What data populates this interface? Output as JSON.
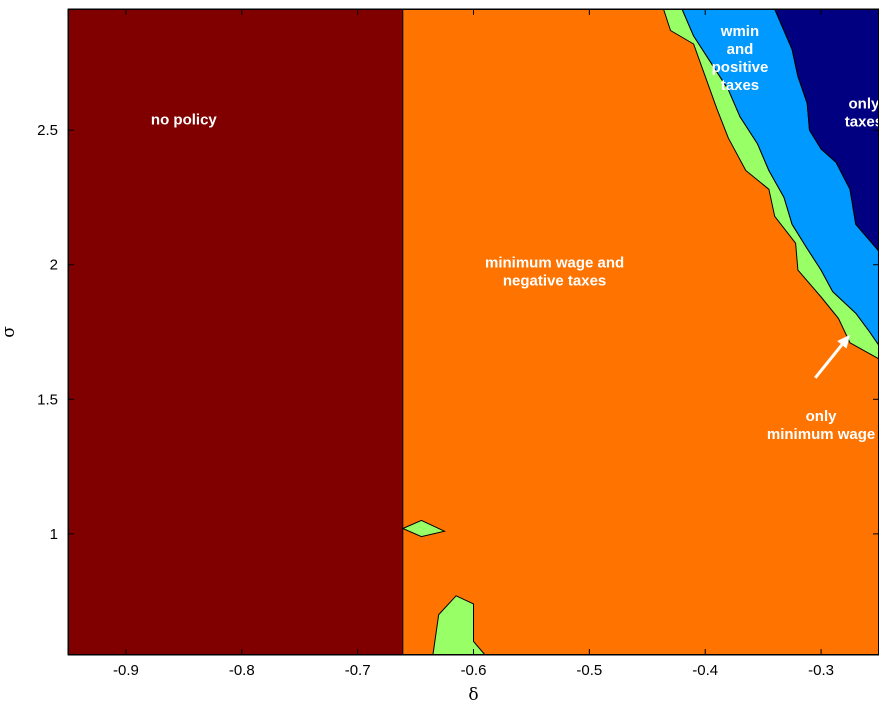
{
  "chart_data": {
    "type": "contour",
    "title": "",
    "xlabel": "δ",
    "ylabel": "σ",
    "xlim": [
      -0.95,
      -0.25
    ],
    "ylim": [
      0.55,
      2.95
    ],
    "xticks": [
      -0.9,
      -0.8,
      -0.7,
      -0.6,
      -0.5,
      -0.4,
      -0.3
    ],
    "xtick_labels": [
      "-0.9",
      "-0.8",
      "-0.7",
      "-0.6",
      "-0.5",
      "-0.4",
      "-0.3"
    ],
    "yticks": [
      1,
      1.5,
      2,
      2.5
    ],
    "ytick_labels": [
      "1",
      "1.5",
      "2",
      "2.5"
    ],
    "grid": false,
    "regions": [
      {
        "key": "no-policy",
        "label_lines": [
          "no policy"
        ],
        "color": "#800000",
        "label_at": [
          -0.85,
          2.52
        ],
        "polygon": [
          [
            -0.95,
            0.55
          ],
          [
            -0.95,
            2.95
          ],
          [
            -0.661,
            2.95
          ],
          [
            -0.661,
            1.07
          ],
          [
            -0.645,
            1.0
          ],
          [
            -0.64,
            0.55
          ]
        ]
      },
      {
        "key": "minimum-wage-and-negative-taxes",
        "label_lines": [
          "minimum wage and",
          "negative taxes"
        ],
        "color": "#ff7300",
        "label_at": [
          -0.53,
          1.99
        ],
        "polygon": [
          [
            -0.661,
            2.95
          ],
          [
            -0.25,
            2.95
          ],
          [
            -0.25,
            0.55
          ],
          [
            -0.661,
            0.55
          ],
          [
            -0.661,
            1.07
          ]
        ]
      },
      {
        "key": "only-minimum-wage",
        "label_lines": [
          "only",
          "minimum wage"
        ],
        "color": "#99ff66",
        "label_at": [
          -0.3,
          1.42
        ],
        "polygon": [
          [
            -0.436,
            2.95
          ],
          [
            -0.43,
            2.87
          ],
          [
            -0.41,
            2.82
          ],
          [
            -0.4,
            2.7
          ],
          [
            -0.39,
            2.58
          ],
          [
            -0.38,
            2.47
          ],
          [
            -0.365,
            2.35
          ],
          [
            -0.345,
            2.28
          ],
          [
            -0.34,
            2.18
          ],
          [
            -0.322,
            2.08
          ],
          [
            -0.32,
            1.98
          ],
          [
            -0.3,
            1.88
          ],
          [
            -0.285,
            1.8
          ],
          [
            -0.275,
            1.71
          ],
          [
            -0.25,
            1.65
          ],
          [
            -0.25,
            1.7
          ],
          [
            -0.258,
            1.75
          ],
          [
            -0.27,
            1.82
          ],
          [
            -0.29,
            1.9
          ],
          [
            -0.3,
            1.98
          ],
          [
            -0.312,
            2.06
          ],
          [
            -0.325,
            2.15
          ],
          [
            -0.332,
            2.25
          ],
          [
            -0.345,
            2.35
          ],
          [
            -0.355,
            2.45
          ],
          [
            -0.37,
            2.55
          ],
          [
            -0.38,
            2.65
          ],
          [
            -0.395,
            2.75
          ],
          [
            -0.41,
            2.85
          ],
          [
            -0.42,
            2.95
          ]
        ]
      },
      {
        "key": "wmin-and-positive-taxes",
        "label_lines": [
          "wmin",
          "and",
          "positive",
          "taxes"
        ],
        "color": "#0099ff",
        "label_at": [
          -0.37,
          2.85
        ],
        "polygon": [
          [
            -0.42,
            2.95
          ],
          [
            -0.41,
            2.85
          ],
          [
            -0.395,
            2.75
          ],
          [
            -0.38,
            2.65
          ],
          [
            -0.37,
            2.55
          ],
          [
            -0.355,
            2.45
          ],
          [
            -0.345,
            2.35
          ],
          [
            -0.332,
            2.25
          ],
          [
            -0.325,
            2.15
          ],
          [
            -0.312,
            2.06
          ],
          [
            -0.3,
            1.98
          ],
          [
            -0.29,
            1.9
          ],
          [
            -0.27,
            1.82
          ],
          [
            -0.258,
            1.75
          ],
          [
            -0.25,
            1.7
          ],
          [
            -0.25,
            2.05
          ],
          [
            -0.26,
            2.1
          ],
          [
            -0.27,
            2.15
          ],
          [
            -0.275,
            2.28
          ],
          [
            -0.287,
            2.38
          ],
          [
            -0.3,
            2.43
          ],
          [
            -0.31,
            2.5
          ],
          [
            -0.312,
            2.6
          ],
          [
            -0.32,
            2.7
          ],
          [
            -0.325,
            2.8
          ],
          [
            -0.335,
            2.9
          ],
          [
            -0.34,
            2.95
          ]
        ]
      },
      {
        "key": "only-taxes",
        "label_lines": [
          "only",
          "taxes"
        ],
        "color": "#000080",
        "label_at": [
          -0.263,
          2.58
        ],
        "polygon": [
          [
            -0.34,
            2.95
          ],
          [
            -0.335,
            2.9
          ],
          [
            -0.325,
            2.8
          ],
          [
            -0.32,
            2.7
          ],
          [
            -0.312,
            2.6
          ],
          [
            -0.31,
            2.5
          ],
          [
            -0.3,
            2.43
          ],
          [
            -0.287,
            2.38
          ],
          [
            -0.275,
            2.28
          ],
          [
            -0.27,
            2.15
          ],
          [
            -0.26,
            2.1
          ],
          [
            -0.25,
            2.05
          ],
          [
            -0.25,
            2.95
          ]
        ]
      }
    ],
    "islands": [
      {
        "key": "island-upper",
        "color": "#99ff66",
        "polygon": [
          [
            -0.661,
            1.02
          ],
          [
            -0.645,
            1.05
          ],
          [
            -0.625,
            1.01
          ],
          [
            -0.645,
            0.99
          ]
        ]
      },
      {
        "key": "island-lower",
        "color": "#99ff66",
        "polygon": [
          [
            -0.635,
            0.55
          ],
          [
            -0.63,
            0.7
          ],
          [
            -0.615,
            0.77
          ],
          [
            -0.6,
            0.74
          ],
          [
            -0.6,
            0.6
          ],
          [
            -0.59,
            0.55
          ]
        ]
      }
    ],
    "annotation_arrow": {
      "from": [
        -0.305,
        1.58
      ],
      "to": [
        -0.275,
        1.74
      ],
      "color": "#ffffff"
    }
  }
}
